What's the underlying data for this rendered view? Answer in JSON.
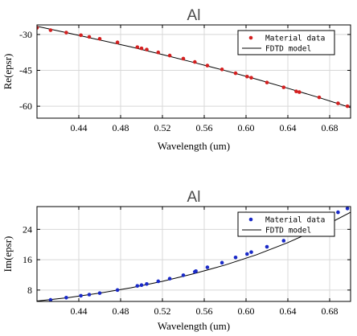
{
  "chart_data": [
    {
      "type": "scatter",
      "title": "Al",
      "xlabel": "Wavelength (um)",
      "ylabel": "Re(epsr)",
      "xlim": [
        0.4,
        0.7
      ],
      "ylim": [
        -65,
        -26
      ],
      "xticks": [
        0.44,
        0.48,
        0.52,
        0.56,
        0.6,
        0.64,
        0.68
      ],
      "yticks": [
        -30,
        -45,
        -60
      ],
      "grid": true,
      "legend_position": "top-right",
      "series": [
        {
          "name": "Material data",
          "marker_color": "#d42020",
          "x": [
            0.4,
            0.413,
            0.428,
            0.442,
            0.45,
            0.46,
            0.477,
            0.496,
            0.5,
            0.505,
            0.516,
            0.527,
            0.54,
            0.551,
            0.563,
            0.577,
            0.59,
            0.601,
            0.605,
            0.62,
            0.636,
            0.648,
            0.651,
            0.67,
            0.688,
            0.697
          ],
          "y": [
            -27.2,
            -28.2,
            -29.2,
            -30.3,
            -31.0,
            -31.8,
            -33.3,
            -35.3,
            -35.8,
            -36.3,
            -37.5,
            -38.8,
            -40.1,
            -41.5,
            -43.0,
            -44.6,
            -46.2,
            -47.6,
            -48.1,
            -50.1,
            -52.1,
            -53.8,
            -54.1,
            -56.3,
            -58.8,
            -60.0
          ]
        },
        {
          "name": "FDTD model",
          "line_color": "#000000",
          "x": [
            0.4,
            0.43,
            0.46,
            0.49,
            0.52,
            0.55,
            0.58,
            0.61,
            0.64,
            0.67,
            0.7
          ],
          "y": [
            -26.6,
            -29.4,
            -32.3,
            -35.2,
            -38.4,
            -41.7,
            -45.1,
            -48.7,
            -52.5,
            -56.4,
            -60.6
          ]
        }
      ]
    },
    {
      "type": "scatter",
      "title": "Al",
      "xlabel": "Wavelength (um)",
      "ylabel": "Im(epsr)",
      "xlim": [
        0.4,
        0.7
      ],
      "ylim": [
        5,
        30
      ],
      "xticks": [
        0.44,
        0.48,
        0.52,
        0.56,
        0.6,
        0.64,
        0.68
      ],
      "yticks": [
        8,
        16,
        24
      ],
      "grid": true,
      "legend_position": "top-right",
      "series": [
        {
          "name": "Material data",
          "marker_color": "#1a2ac8",
          "x": [
            0.413,
            0.428,
            0.442,
            0.45,
            0.46,
            0.477,
            0.496,
            0.5,
            0.505,
            0.516,
            0.527,
            0.54,
            0.551,
            0.552,
            0.563,
            0.577,
            0.59,
            0.601,
            0.605,
            0.62,
            0.636,
            0.648,
            0.688,
            0.697
          ],
          "y": [
            5.4,
            6.0,
            6.5,
            6.8,
            7.2,
            8.0,
            9.1,
            9.3,
            9.6,
            10.3,
            11.0,
            11.9,
            12.8,
            13.0,
            14.0,
            15.2,
            16.6,
            17.5,
            18.0,
            19.4,
            21.0,
            22.6,
            28.5,
            29.5
          ]
        },
        {
          "name": "FDTD model",
          "line_color": "#000000",
          "x": [
            0.4,
            0.43,
            0.46,
            0.49,
            0.52,
            0.55,
            0.58,
            0.61,
            0.64,
            0.67,
            0.7
          ],
          "y": [
            5.1,
            6.0,
            7.2,
            8.6,
            10.3,
            12.3,
            14.6,
            17.3,
            20.5,
            24.2,
            28.5
          ]
        }
      ]
    }
  ]
}
